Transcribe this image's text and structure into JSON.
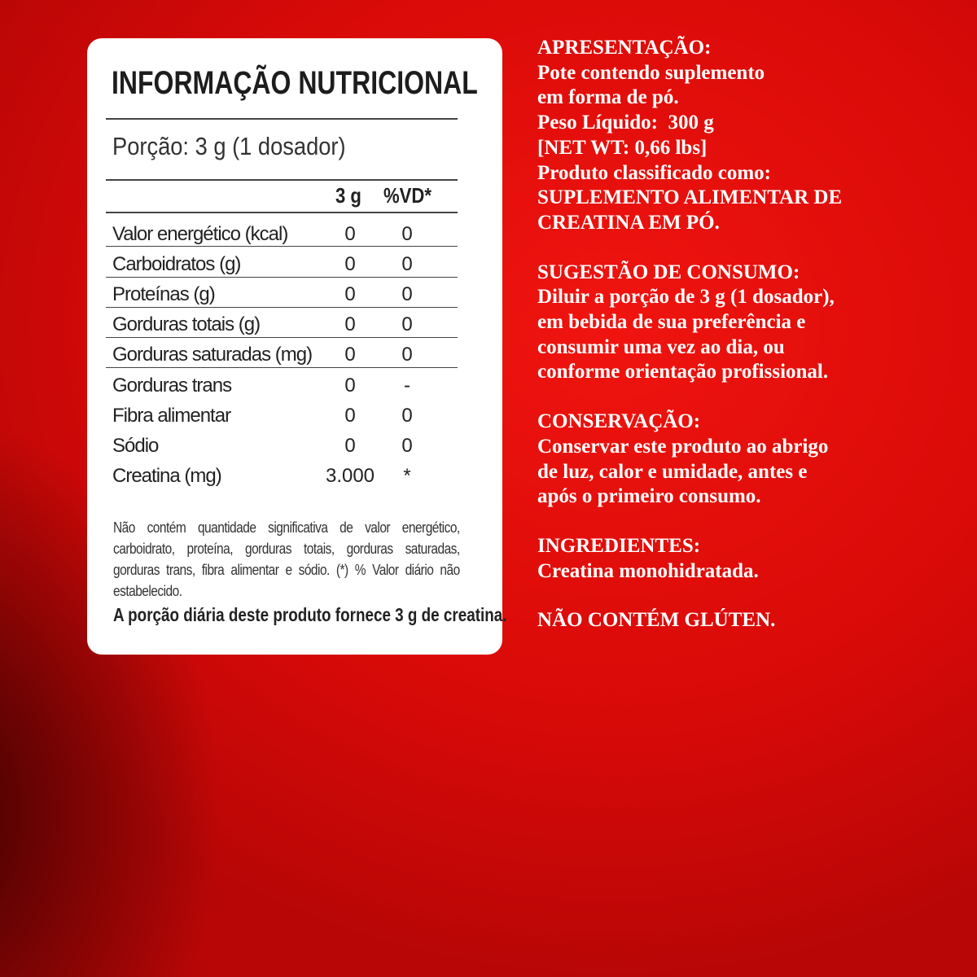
{
  "label": {
    "title": "INFORMAÇÃO NUTRICIONAL",
    "portion": "Porção: 3 g (1 dosador)",
    "col_amount": "3 g",
    "col_vd": "%VD*",
    "rows": [
      {
        "name": "Valor energético (kcal)",
        "amount": "0",
        "vd": "0"
      },
      {
        "name": "Carboidratos (g)",
        "amount": "0",
        "vd": "0"
      },
      {
        "name": "Proteínas (g)",
        "amount": "0",
        "vd": "0"
      },
      {
        "name": "Gorduras totais (g)",
        "amount": "0",
        "vd": "0"
      },
      {
        "name": "Gorduras saturadas (mg)",
        "amount": "0",
        "vd": "0"
      },
      {
        "name": "Gorduras trans",
        "amount": "0",
        "vd": "-"
      },
      {
        "name": "Fibra alimentar",
        "amount": "0",
        "vd": "0"
      },
      {
        "name": "Sódio",
        "amount": "0",
        "vd": "0"
      },
      {
        "name": "Creatina (mg)",
        "amount": "3.000",
        "vd": "*"
      }
    ],
    "note": "Não contém quantidade significativa de valor energético, carboidrato, proteína, gorduras totais, gorduras saturadas, gorduras trans, fibra alimentar e sódio. (*) % Valor diário não estabelecido.",
    "daily": "A porção diária deste produto fornece 3 g de creatina."
  },
  "info": {
    "apresentacao": {
      "heading": "APRESENTAÇÃO:",
      "lines": [
        "Pote contendo suplemento",
        "em forma de pó.",
        "Peso Líquido:  300 g",
        "[NET WT: 0,66 lbs]",
        "Produto classificado como:",
        "SUPLEMENTO ALIMENTAR DE",
        "CREATINA EM PÓ."
      ]
    },
    "sugestao": {
      "heading": "SUGESTÃO DE CONSUMO:",
      "lines": [
        "Diluir a porção de 3 g (1 dosador),",
        "em bebida de sua preferência e",
        "consumir uma vez ao dia, ou",
        "conforme orientação profissional."
      ]
    },
    "conservacao": {
      "heading": "CONSERVAÇÃO:",
      "lines": [
        "Conservar este produto ao abrigo",
        "de luz, calor e umidade, antes e",
        "após o primeiro consumo."
      ]
    },
    "ingredientes": {
      "heading": "INGREDIENTES:",
      "lines": [
        "Creatina monohidratada."
      ]
    },
    "gluten": "NÃO CONTÉM GLÚTEN."
  }
}
